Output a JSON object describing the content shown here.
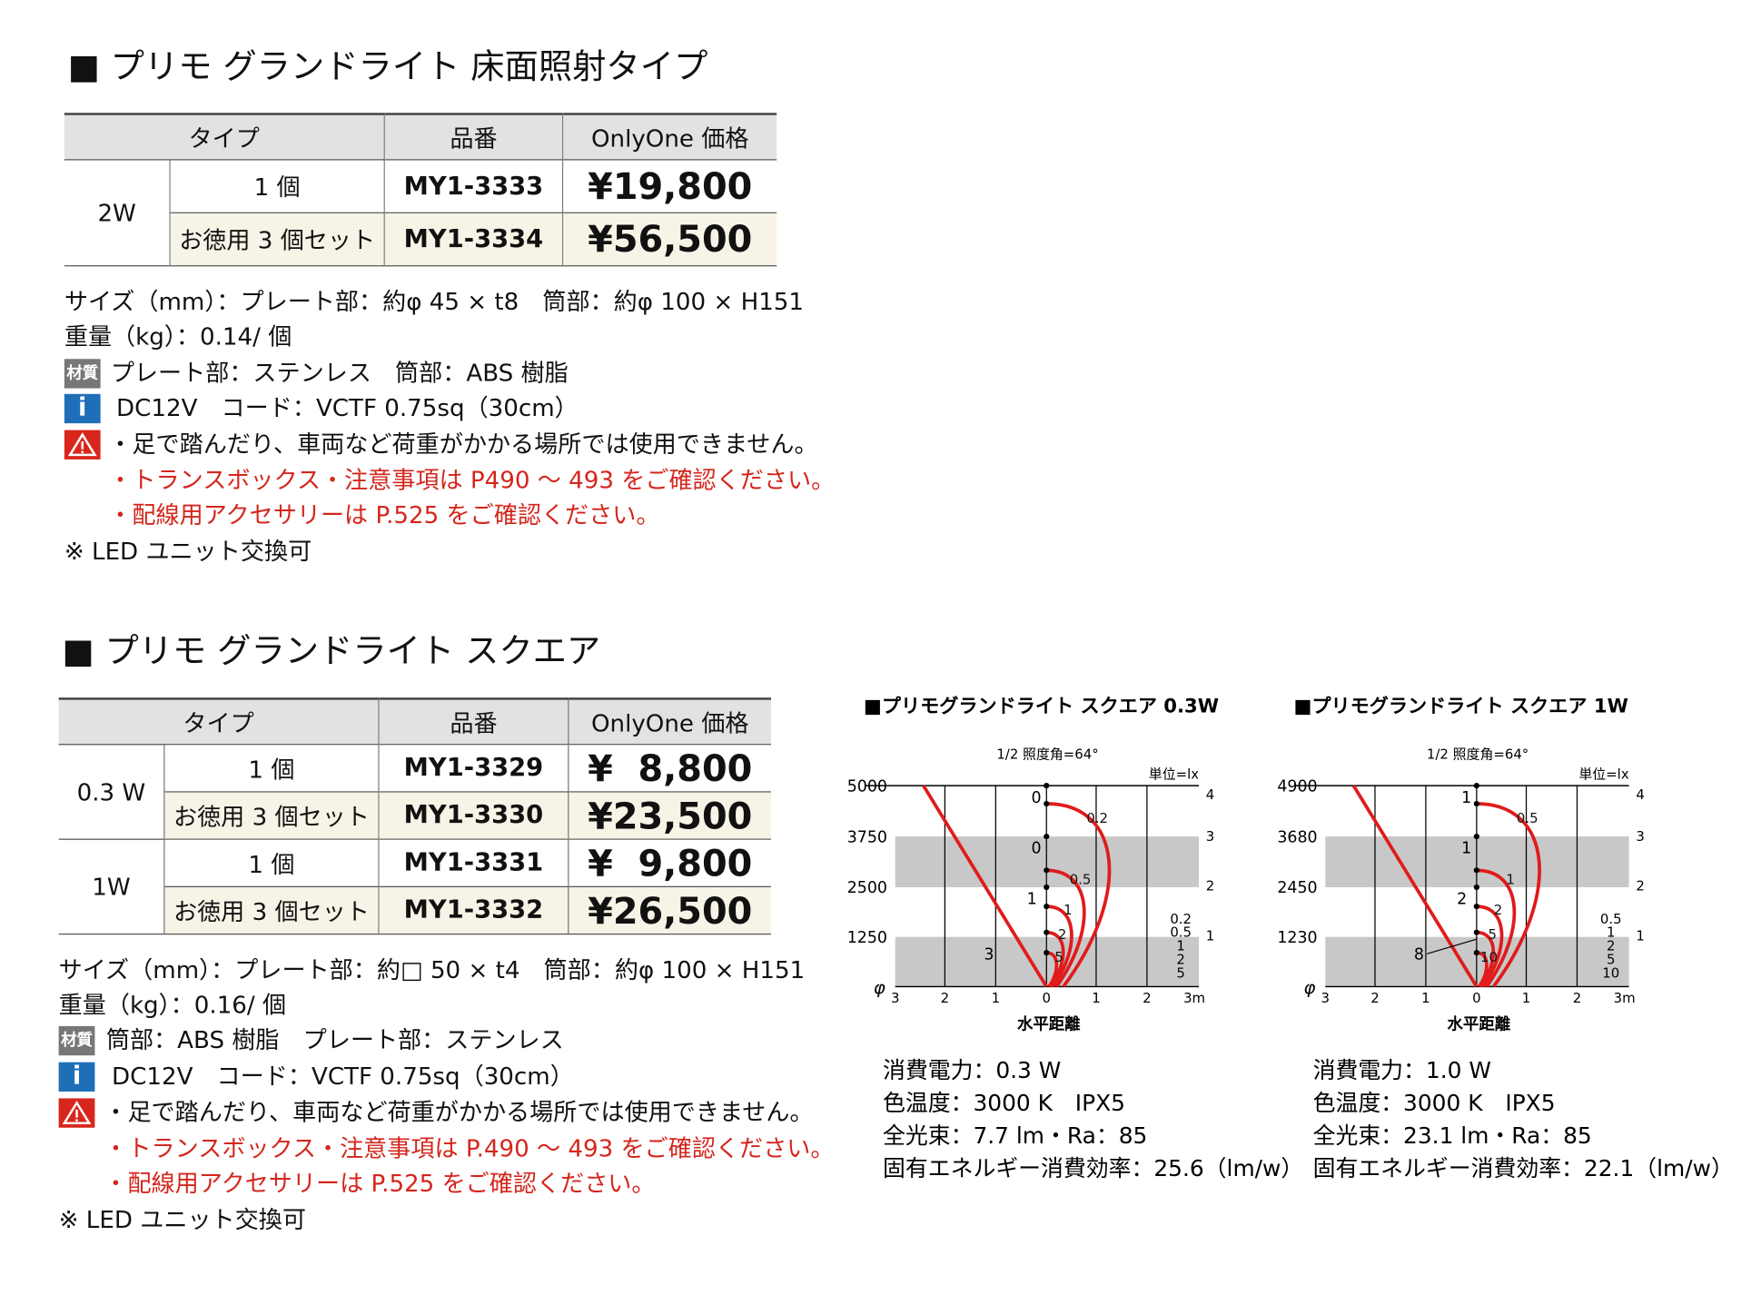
{
  "sections": [
    {
      "title": "■ プリモ グランドライト 床面照射タイプ",
      "table": {
        "header": [
          "タイプ",
          "品番",
          "OnlyOne 価格"
        ],
        "groups": [
          {
            "type": "2W",
            "rows": [
              [
                "1 個",
                "MY1-3333",
                "¥19,800"
              ],
              [
                "お徳用 3 個セット",
                "MY1-3334",
                "¥56,500"
              ]
            ]
          }
        ]
      },
      "size": "サイズ（mm）：プレート部：約φ 45 × t8　筒部：約φ 100 × H151",
      "weight": "重量（kg）：0.14/ 個",
      "material": "プレート部：ステンレス　筒部：ABS 樹脂",
      "electrical": "DC12V　コード：VCTF 0.75sq（30cm）",
      "warnings": [
        "・足で踏んだり、車両など荷重がかかる場所では使用できません。",
        "・トランスボックス・注意事項は P490 ～ 493 をご確認ください。",
        "・配線用アクセサリーは P.525 をご確認ください。"
      ],
      "note": "※ LED ユニット交換可"
    },
    {
      "title": "■ プリモ グランドライト スクエア",
      "table": {
        "header": [
          "タイプ",
          "品番",
          "OnlyOne 価格"
        ],
        "groups": [
          {
            "type": "0.3 W",
            "rows": [
              [
                "1 個",
                "MY1-3329",
                "¥  8,800"
              ],
              [
                "お徳用 3 個セット",
                "MY1-3330",
                "¥23,500"
              ]
            ]
          },
          {
            "type": "1W",
            "rows": [
              [
                "1 個",
                "MY1-3331",
                "¥  9,800"
              ],
              [
                "お徳用 3 個セット",
                "MY1-3332",
                "¥26,500"
              ]
            ]
          }
        ]
      },
      "size": "サイズ（mm）：プレート部：約□ 50 × t4　筒部：約φ 100 × H151",
      "weight": "重量（kg）：0.16/ 個",
      "material": "筒部：ABS 樹脂　プレート部：ステンレス",
      "electrical": "DC12V　コード：VCTF 0.75sq（30cm）",
      "warnings": [
        "・足で踏んだり、車両など荷重がかかる場所では使用できません。",
        "・トランスボックス・注意事項は P.490 ～ 493 をご確認ください。",
        "・配線用アクセサリーは P.525 をご確認ください。"
      ],
      "note": "※ LED ユニット交換可"
    }
  ],
  "icons": {
    "material": "材質",
    "info": "i"
  },
  "diagrams": [
    {
      "title": "■プリモグランドライト スクエア 0.3W",
      "angle": "1/2 照度角=64°",
      "unit": "単位=lx",
      "y_ticks": [
        "5000",
        "3750",
        "2500",
        "1250"
      ],
      "right_ticks": [
        "4",
        "3",
        "2",
        "1"
      ],
      "x_ticks": [
        "3",
        "2",
        "1",
        "0",
        "1",
        "2",
        "3m"
      ],
      "phi": "φ",
      "x_axis": "水平距離",
      "center_labels": [
        "0",
        "0",
        "1",
        "3"
      ],
      "curve_labels": [
        "0.2",
        "0.5",
        "1",
        "2",
        "5"
      ],
      "legend": [
        "0.2",
        "0.5",
        "1",
        "2",
        "5"
      ],
      "specs": [
        "消費電力：0.3 W",
        "色温度：3000 K　IPX5",
        "全光束：7.7 lm・Ra：85",
        "固有エネルギー消費効率：25.6（lm/w）"
      ]
    },
    {
      "title": "■プリモグランドライト スクエア 1W",
      "angle": "1/2 照度角=64°",
      "unit": "単位=lx",
      "y_ticks": [
        "4900",
        "3680",
        "2450",
        "1230"
      ],
      "right_ticks": [
        "4",
        "3",
        "2",
        "1"
      ],
      "x_ticks": [
        "3",
        "2",
        "1",
        "0",
        "1",
        "2",
        "3m"
      ],
      "phi": "φ",
      "x_axis": "水平距離",
      "center_labels": [
        "1",
        "1",
        "2",
        "8"
      ],
      "curve_labels": [
        "0.5",
        "1",
        "2",
        "5",
        "10"
      ],
      "legend": [
        "0.5",
        "1",
        "2",
        "5",
        "10"
      ],
      "specs": [
        "消費電力：1.0 W",
        "色温度：3000 K　IPX5",
        "全光束：23.1 lm・Ra：85",
        "固有エネルギー消費効率：22.1（lm/w）"
      ]
    }
  ]
}
